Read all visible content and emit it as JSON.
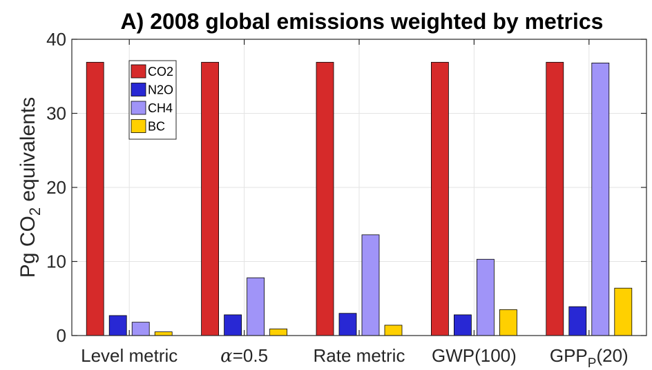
{
  "chart_data": {
    "type": "bar",
    "title": "A) 2008 global emissions weighted by metrics",
    "ylabel_main": "Pg CO",
    "ylabel_sub": "2",
    "ylabel_suffix": " equivalents",
    "ylim": [
      0,
      40
    ],
    "yticks": [
      "0",
      "10",
      "20",
      "30",
      "40"
    ],
    "categories": [
      {
        "main": "Level metric",
        "sub": "",
        "suffix": "",
        "italic_prefix": ""
      },
      {
        "main": "=0.5",
        "sub": "",
        "suffix": "",
        "italic_prefix": "α"
      },
      {
        "main": "Rate metric",
        "sub": "",
        "suffix": "",
        "italic_prefix": ""
      },
      {
        "main": "GWP(100)",
        "sub": "",
        "suffix": "",
        "italic_prefix": ""
      },
      {
        "main": "GPP",
        "sub": "P",
        "suffix": "(20)",
        "italic_prefix": ""
      }
    ],
    "series": [
      {
        "name": "CO2",
        "color": "#d62a2a",
        "values": [
          36.9,
          36.9,
          36.9,
          36.9,
          36.9
        ]
      },
      {
        "name": "N2O",
        "color": "#2828d4",
        "values": [
          2.7,
          2.8,
          3.0,
          2.8,
          3.9
        ]
      },
      {
        "name": "CH4",
        "color": "#a094f8",
        "values": [
          1.8,
          7.8,
          13.6,
          10.3,
          36.8
        ]
      },
      {
        "name": "BC",
        "color": "#ffd000",
        "values": [
          0.5,
          0.9,
          1.4,
          3.5,
          6.4
        ]
      }
    ],
    "grid": true,
    "legend_position": "top-left"
  }
}
